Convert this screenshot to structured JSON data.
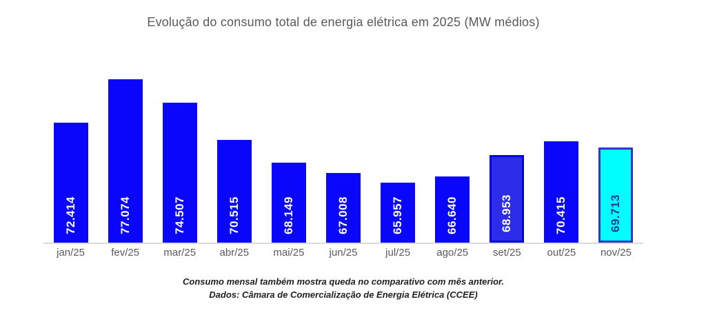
{
  "chart_data": {
    "type": "bar",
    "title": "Evolução do consumo total de energia elétrica em 2025 (MW médios)",
    "categories": [
      "jan/25",
      "fev/25",
      "mar/25",
      "abr/25",
      "mai/25",
      "jun/25",
      "jul/25",
      "ago/25",
      "set/25",
      "out/25",
      "nov/25"
    ],
    "values": [
      72414,
      77074,
      74507,
      70515,
      68149,
      67008,
      65957,
      66640,
      68953,
      70415,
      69713
    ],
    "labels": [
      "72.414",
      "77.074",
      "74.507",
      "70.515",
      "68.149",
      "67.008",
      "65.957",
      "66.640",
      "68.953",
      "70.415",
      "69.713"
    ],
    "xlabel": "",
    "ylabel": "",
    "ylim": [
      59544,
      78900
    ],
    "grid": false,
    "legend_position": "none",
    "axis_line_color": "#d9d9d9",
    "tick_label_color": "#595959",
    "title_color": "#595959",
    "styles": {
      "bar_default": {
        "fill": "#0a06fb",
        "label_color": "#ffffff"
      },
      "bar_overrides": {
        "8": {
          "fill": "#2d2de9",
          "border": "#0202dd",
          "label_color": "#ffffff"
        },
        "10": {
          "fill": "#00fefe",
          "border": "#3333cc",
          "label_color": "#263c96"
        }
      }
    },
    "annotations": [
      "Consumo mensal também mostra queda no comparativo com mês anterior.",
      "Dados: Câmara de Comercialização de Energia Elétrica (CCEE)"
    ]
  }
}
